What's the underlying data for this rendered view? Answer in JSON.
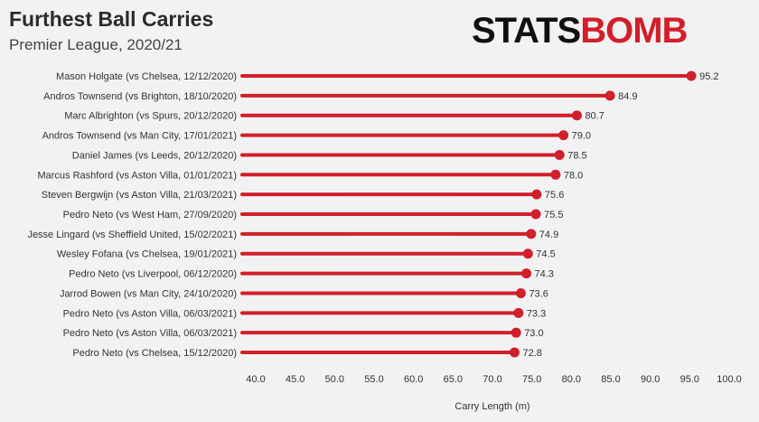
{
  "header": {
    "title": "Furthest Ball Carries",
    "subtitle": "Premier League, 2020/21",
    "logo_left": "STATS",
    "logo_right": "BOMB"
  },
  "colors": {
    "bar": "#d11f2b",
    "accent": "#d11f2b",
    "background": "#f2f2f2"
  },
  "chart_data": {
    "type": "bar",
    "orientation": "horizontal",
    "title": "Furthest Ball Carries",
    "subtitle": "Premier League, 2020/21",
    "xlabel": "Carry Length (m)",
    "ylabel": "",
    "xlim": [
      40,
      100
    ],
    "xticks": [
      "40.0",
      "45.0",
      "50.0",
      "55.0",
      "60.0",
      "65.0",
      "70.0",
      "75.0",
      "80.0",
      "85.0",
      "90.0",
      "95.0",
      "100.0"
    ],
    "grid": false,
    "categories": [
      "Mason Holgate (vs Chelsea, 12/12/2020)",
      "Andros Townsend (vs Brighton, 18/10/2020)",
      "Marc Albrighton (vs Spurs, 20/12/2020)",
      "Andros Townsend (vs Man City, 17/01/2021)",
      "Daniel James (vs Leeds, 20/12/2020)",
      "Marcus Rashford (vs Aston Villa, 01/01/2021)",
      "Steven Bergwijn (vs Aston Villa, 21/03/2021)",
      "Pedro Neto (vs West Ham, 27/09/2020)",
      "Jesse Lingard (vs Sheffield United, 15/02/2021)",
      "Wesley Fofana (vs Chelsea, 19/01/2021)",
      "Pedro Neto (vs Liverpool, 06/12/2020)",
      "Jarrod Bowen (vs Man City, 24/10/2020)",
      "Pedro Neto (vs Aston Villa, 06/03/2021)",
      "Pedro Neto (vs Aston Villa, 06/03/2021)",
      "Pedro Neto (vs Chelsea, 15/12/2020)"
    ],
    "values": [
      95.2,
      84.9,
      80.7,
      79.0,
      78.5,
      78.0,
      75.6,
      75.5,
      74.9,
      74.5,
      74.3,
      73.6,
      73.3,
      73.0,
      72.8
    ],
    "value_labels": [
      "95.2",
      "84.9",
      "80.7",
      "79.0",
      "78.5",
      "78.0",
      "75.6",
      "75.5",
      "74.9",
      "74.5",
      "74.3",
      "73.6",
      "73.3",
      "73.0",
      "72.8"
    ]
  }
}
